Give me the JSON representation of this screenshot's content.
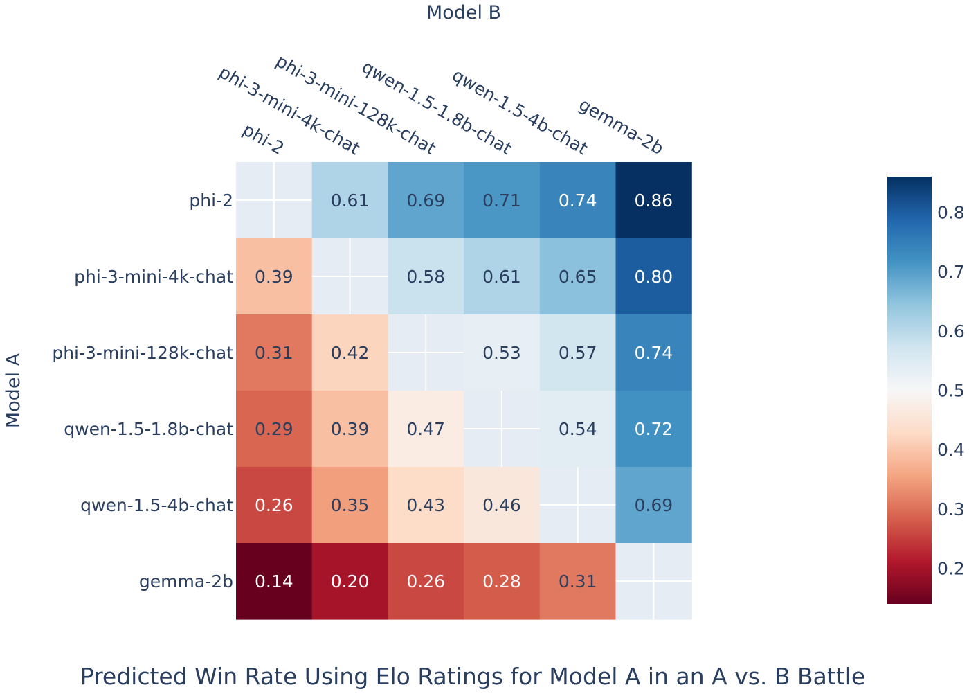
{
  "chart_data": {
    "type": "heatmap",
    "title": "Predicted Win Rate Using Elo Ratings for Model A in an A vs. B Battle",
    "xlabel": "Model B",
    "ylabel": "Model A",
    "x_categories": [
      "phi-2",
      "phi-3-mini-4k-chat",
      "phi-3-mini-128k-chat",
      "qwen-1.5-1.8b-chat",
      "qwen-1.5-4b-chat",
      "gemma-2b"
    ],
    "y_categories": [
      "phi-2",
      "phi-3-mini-4k-chat",
      "phi-3-mini-128k-chat",
      "qwen-1.5-1.8b-chat",
      "qwen-1.5-4b-chat",
      "gemma-2b"
    ],
    "values": [
      [
        null,
        0.61,
        0.69,
        0.71,
        0.74,
        0.86
      ],
      [
        0.39,
        null,
        0.58,
        0.61,
        0.65,
        0.8
      ],
      [
        0.31,
        0.42,
        null,
        0.53,
        0.57,
        0.74
      ],
      [
        0.29,
        0.39,
        0.47,
        null,
        0.54,
        0.72
      ],
      [
        0.26,
        0.35,
        0.43,
        0.46,
        null,
        0.69
      ],
      [
        0.14,
        0.2,
        0.26,
        0.28,
        0.31,
        null
      ]
    ],
    "colorscale": "RdBu",
    "zlim": [
      0.14,
      0.86
    ],
    "colorbar_ticks": [
      0.2,
      0.3,
      0.4,
      0.5,
      0.6,
      0.7,
      0.8
    ],
    "colorbar_tick_labels": [
      "0.2",
      "0.3",
      "0.4",
      "0.5",
      "0.6",
      "0.7",
      "0.8"
    ],
    "value_format_decimals": 2,
    "colors": {
      "empty_cell": "#e6ecf4",
      "text_dark": "#2a3f5f",
      "text_light": "#ffffff",
      "grid_line": "#ffffff"
    }
  }
}
